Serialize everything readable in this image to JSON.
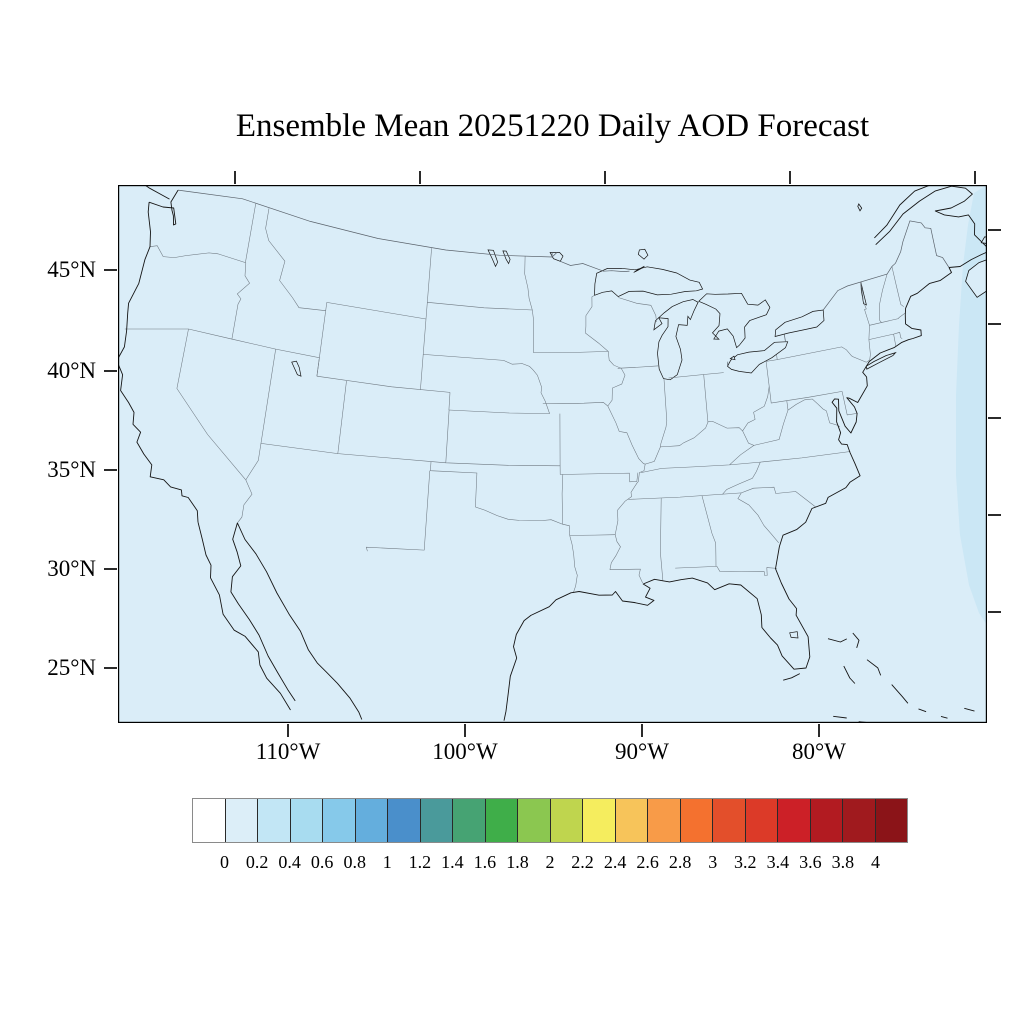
{
  "figure": {
    "title": "Ensemble Mean 20251220 Daily AOD Forecast"
  },
  "axes": {
    "lat_labels": [
      "45°N",
      "40°N",
      "35°N",
      "30°N",
      "25°N"
    ],
    "lon_labels": [
      "110°W",
      "100°W",
      "90°W",
      "80°W"
    ]
  },
  "map": {
    "fill_color": "#DAEDF8",
    "offshore_band_color": "#CBE7F5",
    "coast_color": "#151515",
    "state_border_color": "#6E7881",
    "intl_border_color": "#5A626B",
    "frame_color": "#000000"
  },
  "colorbar": {
    "tick_labels": [
      "0",
      "0.2",
      "0.4",
      "0.6",
      "0.8",
      "1",
      "1.2",
      "1.4",
      "1.6",
      "1.8",
      "2",
      "2.2",
      "2.4",
      "2.6",
      "2.8",
      "3",
      "3.2",
      "3.4",
      "3.6",
      "3.8",
      "4"
    ],
    "colors": [
      "#FFFFFF",
      "#DCEEF8",
      "#C2E6F5",
      "#A8DCF0",
      "#86C9EA",
      "#64AEDD",
      "#4A8FCB",
      "#4A9A9B",
      "#46A373",
      "#3FAE49",
      "#8BC750",
      "#BFD54E",
      "#F5ED5E",
      "#F7C45A",
      "#F89B48",
      "#F4712F",
      "#E34F2B",
      "#DC3A28",
      "#CC2027",
      "#B21B21",
      "#A01A1E",
      "#8B1418"
    ]
  },
  "chart_data": {
    "type": "heatmap",
    "title": "Ensemble Mean 20251220 Daily AOD Forecast",
    "variable": "AOD (Aerosol Optical Depth)",
    "statistic": "Ensemble Mean",
    "date": "20251220",
    "region": "Contiguous United States with state outlines",
    "x_tick_labels": [
      "110°W",
      "100°W",
      "90°W",
      "80°W"
    ],
    "y_tick_labels": [
      "45°N",
      "40°N",
      "35°N",
      "30°N",
      "25°N"
    ],
    "colorbar_levels": [
      0,
      0.2,
      0.4,
      0.6,
      0.8,
      1,
      1.2,
      1.4,
      1.6,
      1.8,
      2,
      2.2,
      2.4,
      2.6,
      2.8,
      3,
      3.2,
      3.4,
      3.6,
      3.8,
      4
    ],
    "legend_position": "bottom",
    "grid": false,
    "field_summary": "AOD is in the 0–0.2 bin (pale blue) over essentially the entire domain; a faint 0.2–0.4 band appears offshore along the eastern (Atlantic) edge of the map."
  }
}
